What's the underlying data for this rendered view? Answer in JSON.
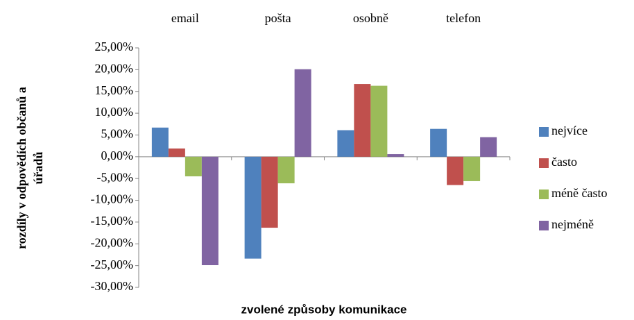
{
  "chart_data": {
    "type": "bar",
    "xlabel": "zvolené způsoby komunikace",
    "ylabel": [
      "rozdíly v odpovědích občanů a",
      "úřadů"
    ],
    "categories": [
      "email",
      "pošta",
      "osobně",
      "telefon"
    ],
    "series": [
      {
        "name": "nejvíce",
        "color": "#4f81bd",
        "values": [
          6.7,
          -23.4,
          6.1,
          6.4
        ]
      },
      {
        "name": "často",
        "color": "#c0504d",
        "values": [
          1.9,
          -16.3,
          16.7,
          -6.5
        ]
      },
      {
        "name": "méně často",
        "color": "#9bbb59",
        "values": [
          -4.5,
          -6.1,
          16.3,
          -5.6
        ]
      },
      {
        "name": "nejméně",
        "color": "#8064a2",
        "values": [
          -24.9,
          20.1,
          0.6,
          4.5
        ]
      }
    ],
    "ylim": [
      -30,
      25
    ],
    "yticks": [
      {
        "value": -30,
        "label": "-30,00%"
      },
      {
        "value": -25,
        "label": "-25,00%"
      },
      {
        "value": -20,
        "label": "-20,00%"
      },
      {
        "value": -15,
        "label": "-15,00%"
      },
      {
        "value": -10,
        "label": "-10,00%"
      },
      {
        "value": -5,
        "label": "-5,00%"
      },
      {
        "value": 0,
        "label": "0,00%"
      },
      {
        "value": 5,
        "label": "5,00%"
      },
      {
        "value": 10,
        "label": "10,00%"
      },
      {
        "value": 15,
        "label": "15,00%"
      },
      {
        "value": 20,
        "label": "20,00%"
      },
      {
        "value": 25,
        "label": "25,00%"
      }
    ],
    "legend": "right"
  }
}
